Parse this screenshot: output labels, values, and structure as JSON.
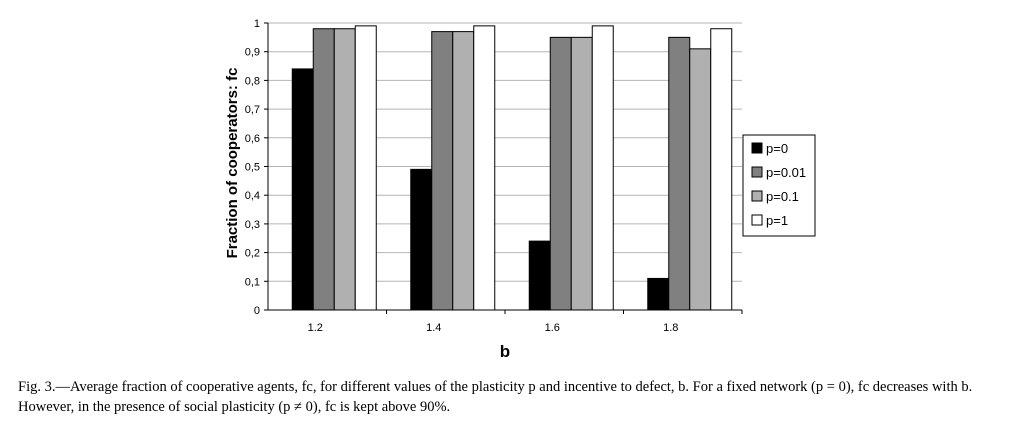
{
  "chart_data": {
    "type": "bar",
    "categories": [
      "1.2",
      "1.4",
      "1.6",
      "1.8"
    ],
    "series": [
      {
        "name": "p=0",
        "values": [
          0.84,
          0.49,
          0.24,
          0.11
        ],
        "color": "#000000"
      },
      {
        "name": "p=0.01",
        "values": [
          0.98,
          0.97,
          0.95,
          0.95
        ],
        "color": "#808080"
      },
      {
        "name": "p=0.1",
        "values": [
          0.98,
          0.97,
          0.95,
          0.91
        ],
        "color": "#b0b0b0"
      },
      {
        "name": "p=1",
        "values": [
          0.99,
          0.99,
          0.99,
          0.98
        ],
        "color": "#ffffff"
      }
    ],
    "xlabel": "b",
    "ylabel": "Fraction of cooperators: fc",
    "ylim": [
      0,
      1
    ],
    "yticks": [
      "0",
      "0,1",
      "0,2",
      "0,3",
      "0,4",
      "0,5",
      "0,6",
      "0,7",
      "0,8",
      "0,9",
      "1"
    ],
    "grid": true,
    "legend_position": "right"
  },
  "caption": "Fig. 3.—Average fraction of cooperative agents, fc, for different values of the plasticity p and incentive to defect, b. For a fixed network (p = 0), fc decreases with b. However, in the presence of social plasticity (p ≠ 0), fc is kept above 90%."
}
